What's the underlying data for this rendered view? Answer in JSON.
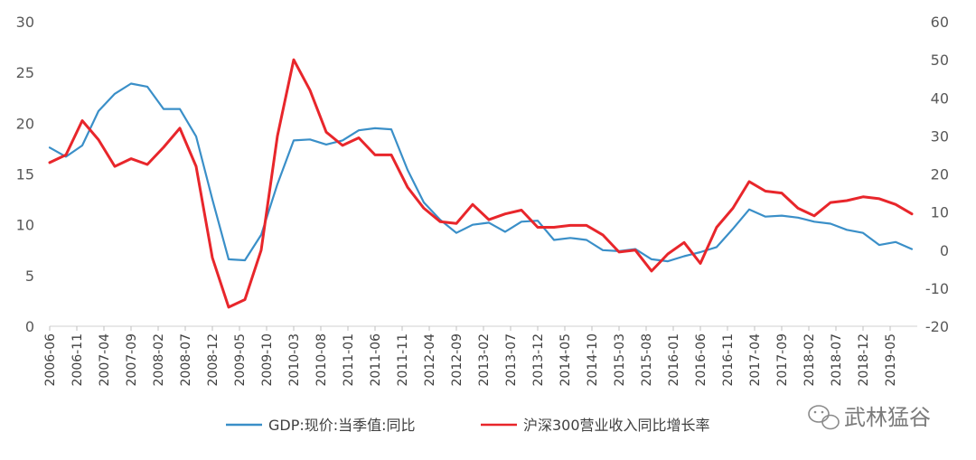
{
  "watermark": {
    "text": "武林猛谷",
    "icon": "wechat-icon"
  },
  "chart_data": {
    "type": "line",
    "grid": false,
    "legend_position": "bottom",
    "x_tick_labels": [
      "2006-06",
      "2006-11",
      "2007-04",
      "2007-09",
      "2008-02",
      "2008-07",
      "2008-12",
      "2009-05",
      "2009-10",
      "2010-03",
      "2010-08",
      "2011-01",
      "2011-06",
      "2011-11",
      "2012-04",
      "2012-09",
      "2013-02",
      "2013-07",
      "2013-12",
      "2014-05",
      "2014-10",
      "2015-03",
      "2015-08",
      "2016-01",
      "2016-06",
      "2016-11",
      "2017-04",
      "2017-09",
      "2018-02",
      "2018-07",
      "2018-12",
      "2019-05"
    ],
    "x": [
      "2006-06",
      "2006-09",
      "2006-12",
      "2007-03",
      "2007-06",
      "2007-09",
      "2007-12",
      "2008-03",
      "2008-06",
      "2008-09",
      "2008-12",
      "2009-03",
      "2009-06",
      "2009-09",
      "2009-12",
      "2010-03",
      "2010-06",
      "2010-09",
      "2010-12",
      "2011-03",
      "2011-06",
      "2011-09",
      "2011-12",
      "2012-03",
      "2012-06",
      "2012-09",
      "2012-12",
      "2013-03",
      "2013-06",
      "2013-09",
      "2013-12",
      "2014-03",
      "2014-06",
      "2014-09",
      "2014-12",
      "2015-03",
      "2015-06",
      "2015-09",
      "2015-12",
      "2016-03",
      "2016-06",
      "2016-09",
      "2016-12",
      "2017-03",
      "2017-06",
      "2017-09",
      "2017-12",
      "2018-03",
      "2018-06",
      "2018-09",
      "2018-12",
      "2019-03",
      "2019-06",
      "2019-09"
    ],
    "y_left": {
      "min": 0,
      "max": 30,
      "ticks": [
        0,
        5,
        10,
        15,
        20,
        25,
        30
      ]
    },
    "y_right": {
      "min": -20,
      "max": 60,
      "ticks": [
        -20,
        -10,
        0,
        10,
        20,
        30,
        40,
        50,
        60
      ]
    },
    "series": [
      {
        "name": "GDP:现价:当季值:同比",
        "axis": "left",
        "color": "#3a8fc8",
        "values": [
          17.6,
          16.7,
          17.8,
          21.2,
          22.9,
          23.9,
          23.6,
          21.4,
          21.4,
          18.7,
          12.5,
          6.6,
          6.5,
          9.0,
          14.0,
          18.3,
          18.4,
          17.9,
          18.3,
          19.3,
          19.5,
          19.4,
          15.4,
          12.2,
          10.5,
          9.2,
          10.0,
          10.2,
          9.3,
          10.3,
          10.4,
          8.5,
          8.7,
          8.5,
          7.5,
          7.4,
          7.6,
          6.6,
          6.4,
          6.9,
          7.3,
          7.8,
          9.6,
          11.5,
          10.8,
          10.9,
          10.7,
          10.3,
          10.1,
          9.5,
          9.2,
          8.0,
          8.3,
          7.6
        ]
      },
      {
        "name": "沪深300营业收入同比增长率",
        "axis": "right",
        "color": "#e8262b",
        "values": [
          23,
          25,
          34,
          29,
          22,
          24,
          22.5,
          27,
          32,
          22,
          -2,
          -15,
          -13,
          0,
          30,
          50,
          42,
          31,
          27.5,
          29.5,
          25,
          25,
          16.5,
          11,
          7.5,
          7,
          12,
          8,
          9.5,
          10.5,
          6,
          6,
          6.5,
          6.5,
          4,
          -0.5,
          0,
          -5.5,
          -1,
          2,
          -3.5,
          6,
          11,
          18,
          15.5,
          15,
          11,
          9,
          12.5,
          13,
          14,
          13.5,
          12,
          9.5
        ]
      }
    ]
  }
}
